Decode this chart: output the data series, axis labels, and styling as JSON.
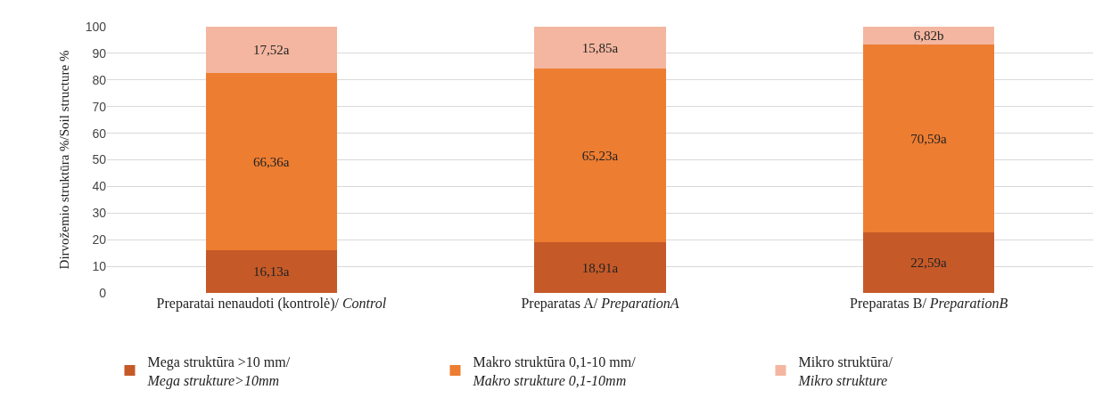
{
  "chart_data": {
    "type": "bar",
    "stacked": true,
    "ylabel": "Dirvožemio struktūra %/Soil structure %",
    "categories": [
      "Preparatai nenaudoti (kontrolė)/ Control",
      "Preparatas A/  PreparationA",
      "Preparatas B/ PreparationB"
    ],
    "series": [
      {
        "name": "Mega struktūra >10 mm/ Mega strukture>10mm",
        "color": "#c55a28",
        "values": [
          16.13,
          18.91,
          22.59
        ],
        "value_labels": [
          "16,13a",
          "18,91a",
          "22,59a"
        ]
      },
      {
        "name": "Makro struktūra 0,1-10 mm/ Makro strukture 0,1-10mm",
        "color": "#ed7d31",
        "values": [
          66.36,
          65.23,
          70.59
        ],
        "value_labels": [
          "66,36a",
          "65,23a",
          "70,59a"
        ]
      },
      {
        "name": "Mikro struktūra/ Mikro strukture",
        "color": "#f4b6a0",
        "values": [
          17.52,
          15.85,
          6.82
        ],
        "value_labels": [
          "17,52a",
          "15,85a",
          "6,82b"
        ]
      }
    ],
    "ylim": [
      0,
      100.01
    ],
    "yticks": [
      0,
      10,
      20,
      30,
      40,
      50,
      60,
      70,
      80,
      90,
      100
    ],
    "grid": "y",
    "legend": "bottom"
  }
}
